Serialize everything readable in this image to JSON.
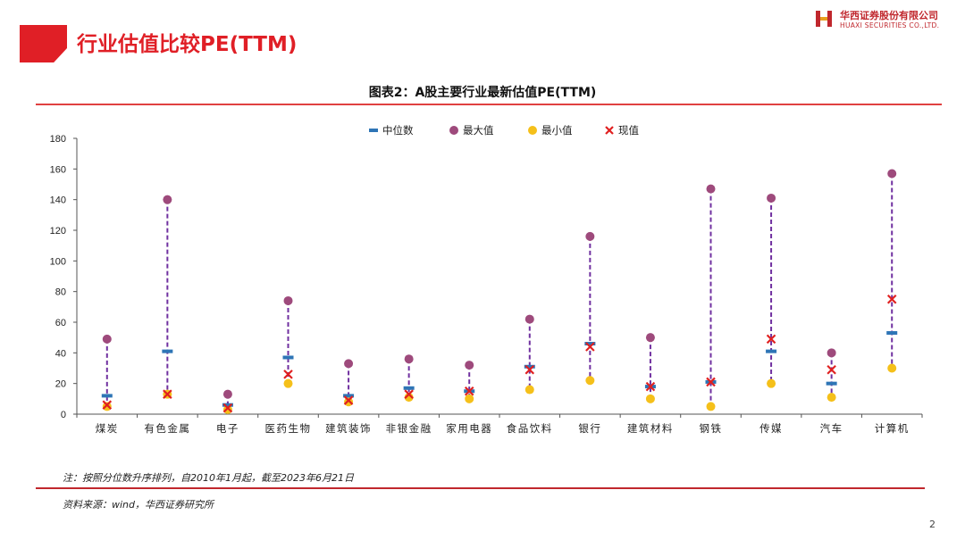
{
  "header": {
    "title": "行业估值比较PE(TTM)",
    "company_cn": "华西证券股份有限公司",
    "company_en": "HUAXI SECURITIES CO.,LTD."
  },
  "chart_title": "图表2：A股主要行业最新估值PE(TTM)",
  "chart_data": {
    "type": "scatter",
    "categories": [
      "煤炭",
      "有色金属",
      "电子",
      "医药生物",
      "建筑装饰",
      "非银金融",
      "家用电器",
      "食品饮料",
      "银行",
      "建筑材料",
      "钢铁",
      "传媒",
      "汽车",
      "计算机"
    ],
    "series": [
      {
        "name": "中位数",
        "marker": "dash",
        "color": "#2e75b6",
        "values": [
          12,
          41,
          6,
          37,
          12,
          17,
          15,
          31,
          46,
          18,
          21,
          41,
          20,
          53
        ]
      },
      {
        "name": "最大值",
        "marker": "circle",
        "color": "#9e4a7c",
        "values": [
          49,
          140,
          13,
          74,
          33,
          36,
          32,
          62,
          116,
          50,
          147,
          141,
          40,
          157
        ]
      },
      {
        "name": "最小值",
        "marker": "circle",
        "color": "#f5c01a",
        "values": [
          5,
          13,
          3,
          20,
          8,
          11,
          10,
          16,
          22,
          10,
          5,
          20,
          11,
          30
        ]
      },
      {
        "name": "现值",
        "marker": "x",
        "color": "#e02020",
        "values": [
          6,
          13,
          4,
          26,
          9,
          13,
          15,
          29,
          44,
          18,
          21,
          49,
          29,
          75
        ]
      }
    ],
    "range_line_color": "#7030a0",
    "ylim": [
      0,
      180
    ],
    "yticks": [
      0,
      20,
      40,
      60,
      80,
      100,
      120,
      140,
      160,
      180
    ],
    "legend_position": "top-center",
    "grid": false
  },
  "note": "注：按照分位数升序排列，自2010年1月起，截至2023年6月21日",
  "source": "资料来源：wind，华西证券研究所",
  "page_number": "2"
}
